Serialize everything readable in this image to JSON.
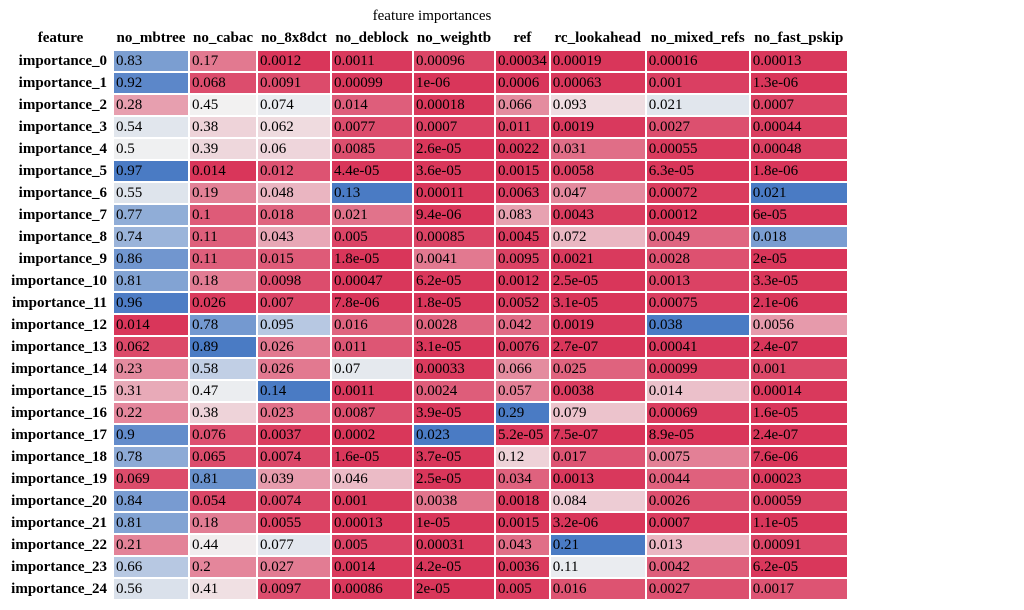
{
  "chart_data": {
    "type": "table",
    "title": "feature importances",
    "index_name": "feature",
    "columns": [
      "no_mbtree",
      "no_cabac",
      "no_8x8dct",
      "no_deblock",
      "no_weightb",
      "ref",
      "rc_lookahead",
      "no_mixed_refs",
      "no_fast_pskip"
    ],
    "rows": [
      {
        "label": "importance_0",
        "values": [
          "0.83",
          "0.17",
          "0.0012",
          "0.0011",
          "0.00096",
          "0.00034",
          "0.00019",
          "0.00016",
          "0.00013"
        ]
      },
      {
        "label": "importance_1",
        "values": [
          "0.92",
          "0.068",
          "0.0091",
          "0.00099",
          "1e-06",
          "0.0006",
          "0.00063",
          "0.001",
          "1.3e-06"
        ]
      },
      {
        "label": "importance_2",
        "values": [
          "0.28",
          "0.45",
          "0.074",
          "0.014",
          "0.00018",
          "0.066",
          "0.093",
          "0.021",
          "0.0007"
        ]
      },
      {
        "label": "importance_3",
        "values": [
          "0.54",
          "0.38",
          "0.062",
          "0.0077",
          "0.0007",
          "0.011",
          "0.0019",
          "0.0027",
          "0.00044"
        ]
      },
      {
        "label": "importance_4",
        "values": [
          "0.5",
          "0.39",
          "0.06",
          "0.0085",
          "2.6e-05",
          "0.0022",
          "0.031",
          "0.00055",
          "0.00048"
        ]
      },
      {
        "label": "importance_5",
        "values": [
          "0.97",
          "0.014",
          "0.012",
          "4.4e-05",
          "3.6e-05",
          "0.0015",
          "0.0058",
          "6.3e-05",
          "1.8e-06"
        ]
      },
      {
        "label": "importance_6",
        "values": [
          "0.55",
          "0.19",
          "0.048",
          "0.13",
          "0.00011",
          "0.0063",
          "0.047",
          "0.00072",
          "0.021"
        ]
      },
      {
        "label": "importance_7",
        "values": [
          "0.77",
          "0.1",
          "0.018",
          "0.021",
          "9.4e-06",
          "0.083",
          "0.0043",
          "0.00012",
          "6e-05"
        ]
      },
      {
        "label": "importance_8",
        "values": [
          "0.74",
          "0.11",
          "0.043",
          "0.005",
          "0.00085",
          "0.0045",
          "0.072",
          "0.0049",
          "0.018"
        ]
      },
      {
        "label": "importance_9",
        "values": [
          "0.86",
          "0.11",
          "0.015",
          "1.8e-05",
          "0.0041",
          "0.0095",
          "0.0021",
          "0.0028",
          "2e-05"
        ]
      },
      {
        "label": "importance_10",
        "values": [
          "0.81",
          "0.18",
          "0.0098",
          "0.00047",
          "6.2e-05",
          "0.0012",
          "2.5e-05",
          "0.0013",
          "3.3e-05"
        ]
      },
      {
        "label": "importance_11",
        "values": [
          "0.96",
          "0.026",
          "0.007",
          "7.8e-06",
          "1.8e-05",
          "0.0052",
          "3.1e-05",
          "0.00075",
          "2.1e-06"
        ]
      },
      {
        "label": "importance_12",
        "values": [
          "0.014",
          "0.78",
          "0.095",
          "0.016",
          "0.0028",
          "0.042",
          "0.0019",
          "0.038",
          "0.0056"
        ]
      },
      {
        "label": "importance_13",
        "values": [
          "0.062",
          "0.89",
          "0.026",
          "0.011",
          "3.1e-05",
          "0.0076",
          "2.7e-07",
          "0.00041",
          "2.4e-07"
        ]
      },
      {
        "label": "importance_14",
        "values": [
          "0.23",
          "0.58",
          "0.026",
          "0.07",
          "0.00033",
          "0.066",
          "0.025",
          "0.00099",
          "0.001"
        ]
      },
      {
        "label": "importance_15",
        "values": [
          "0.31",
          "0.47",
          "0.14",
          "0.0011",
          "0.0024",
          "0.057",
          "0.0038",
          "0.014",
          "0.00014"
        ]
      },
      {
        "label": "importance_16",
        "values": [
          "0.22",
          "0.38",
          "0.023",
          "0.0087",
          "3.9e-05",
          "0.29",
          "0.079",
          "0.00069",
          "1.6e-05"
        ]
      },
      {
        "label": "importance_17",
        "values": [
          "0.9",
          "0.076",
          "0.0037",
          "0.0002",
          "0.023",
          "5.2e-05",
          "7.5e-07",
          "8.9e-05",
          "2.4e-07"
        ]
      },
      {
        "label": "importance_18",
        "values": [
          "0.78",
          "0.065",
          "0.0074",
          "1.6e-05",
          "3.7e-05",
          "0.12",
          "0.017",
          "0.0075",
          "7.6e-06"
        ]
      },
      {
        "label": "importance_19",
        "values": [
          "0.069",
          "0.81",
          "0.039",
          "0.046",
          "2.5e-05",
          "0.034",
          "0.0013",
          "0.0044",
          "0.00023"
        ]
      },
      {
        "label": "importance_20",
        "values": [
          "0.84",
          "0.054",
          "0.0074",
          "0.001",
          "0.0038",
          "0.0018",
          "0.084",
          "0.0026",
          "0.00059"
        ]
      },
      {
        "label": "importance_21",
        "values": [
          "0.81",
          "0.18",
          "0.0055",
          "0.00013",
          "1e-05",
          "0.0015",
          "3.2e-06",
          "0.0007",
          "1.1e-05"
        ]
      },
      {
        "label": "importance_22",
        "values": [
          "0.21",
          "0.44",
          "0.077",
          "0.005",
          "0.00031",
          "0.043",
          "0.21",
          "0.013",
          "0.00091"
        ]
      },
      {
        "label": "importance_23",
        "values": [
          "0.66",
          "0.2",
          "0.027",
          "0.0014",
          "4.2e-05",
          "0.0036",
          "0.11",
          "0.0042",
          "6.2e-05"
        ]
      },
      {
        "label": "importance_24",
        "values": [
          "0.56",
          "0.41",
          "0.0097",
          "0.00086",
          "2e-05",
          "0.005",
          "0.016",
          "0.0027",
          "0.0017"
        ]
      }
    ],
    "colormap": {
      "low": "#d9365a",
      "mid": "#f2f2f2",
      "high": "#4a7bc4",
      "scale": "per-column"
    }
  }
}
